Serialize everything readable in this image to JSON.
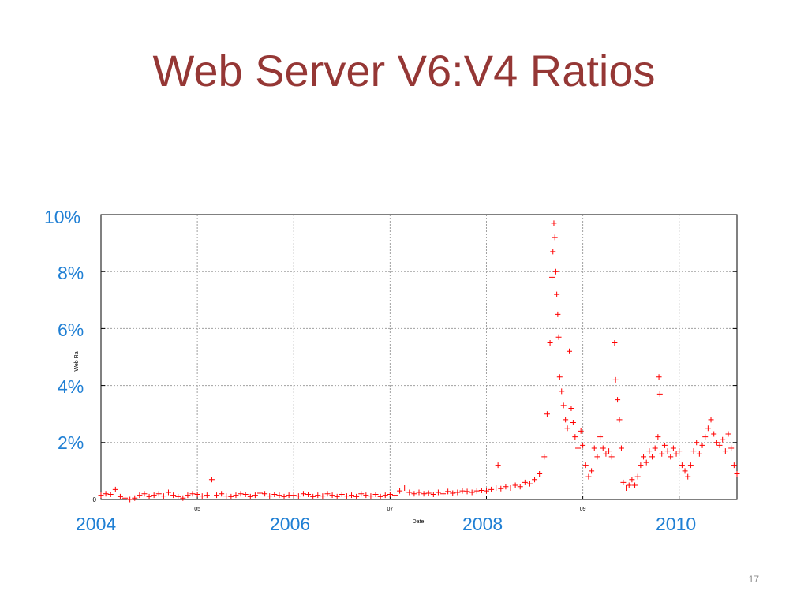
{
  "slide": {
    "title": "Web Server V6:V4 Ratios",
    "page_number": "17"
  },
  "chart_data": {
    "type": "scatter",
    "title": "",
    "xlabel": "Date",
    "ylabel": "Web Ra",
    "x_unit": "year",
    "y_unit": "%",
    "xlim": [
      2004.0,
      2010.6
    ],
    "ylim": [
      0,
      10
    ],
    "grid": true,
    "marker": "+",
    "marker_color": "#ff0000",
    "y_ticks": [
      {
        "value": 0,
        "label": "0"
      },
      {
        "value": 2,
        "label": "2%"
      },
      {
        "value": 4,
        "label": "4%"
      },
      {
        "value": 6,
        "label": "6%"
      },
      {
        "value": 8,
        "label": "8%"
      },
      {
        "value": 10,
        "label": "10%"
      }
    ],
    "x_ticks_small": [
      {
        "value": 2005,
        "label": "05"
      },
      {
        "value": 2007,
        "label": "07"
      },
      {
        "value": 2009,
        "label": "09"
      }
    ],
    "x_ticks_large": [
      {
        "value": 2004,
        "label": "2004"
      },
      {
        "value": 2006,
        "label": "2006"
      },
      {
        "value": 2008,
        "label": "2008"
      },
      {
        "value": 2010,
        "label": "2010"
      }
    ],
    "x_gridlines": [
      2005,
      2006,
      2007,
      2008,
      2009,
      2010
    ],
    "series": [
      {
        "points": [
          [
            2004.0,
            0.15
          ],
          [
            2004.05,
            0.2
          ],
          [
            2004.1,
            0.18
          ],
          [
            2004.15,
            0.35
          ],
          [
            2004.2,
            0.1
          ],
          [
            2004.25,
            0.05
          ],
          [
            2004.3,
            0.0
          ],
          [
            2004.35,
            0.05
          ],
          [
            2004.4,
            0.15
          ],
          [
            2004.45,
            0.2
          ],
          [
            2004.5,
            0.1
          ],
          [
            2004.55,
            0.15
          ],
          [
            2004.6,
            0.2
          ],
          [
            2004.65,
            0.12
          ],
          [
            2004.7,
            0.25
          ],
          [
            2004.75,
            0.15
          ],
          [
            2004.8,
            0.1
          ],
          [
            2004.85,
            0.05
          ],
          [
            2004.9,
            0.15
          ],
          [
            2004.95,
            0.2
          ],
          [
            2005.0,
            0.18
          ],
          [
            2005.05,
            0.12
          ],
          [
            2005.1,
            0.15
          ],
          [
            2005.15,
            0.7
          ],
          [
            2005.2,
            0.15
          ],
          [
            2005.25,
            0.2
          ],
          [
            2005.3,
            0.12
          ],
          [
            2005.35,
            0.1
          ],
          [
            2005.4,
            0.15
          ],
          [
            2005.45,
            0.2
          ],
          [
            2005.5,
            0.18
          ],
          [
            2005.55,
            0.1
          ],
          [
            2005.6,
            0.15
          ],
          [
            2005.65,
            0.22
          ],
          [
            2005.7,
            0.2
          ],
          [
            2005.75,
            0.12
          ],
          [
            2005.8,
            0.18
          ],
          [
            2005.85,
            0.15
          ],
          [
            2005.9,
            0.1
          ],
          [
            2005.95,
            0.15
          ],
          [
            2006.0,
            0.15
          ],
          [
            2006.05,
            0.12
          ],
          [
            2006.1,
            0.2
          ],
          [
            2006.15,
            0.18
          ],
          [
            2006.2,
            0.1
          ],
          [
            2006.25,
            0.15
          ],
          [
            2006.3,
            0.12
          ],
          [
            2006.35,
            0.2
          ],
          [
            2006.4,
            0.15
          ],
          [
            2006.45,
            0.1
          ],
          [
            2006.5,
            0.18
          ],
          [
            2006.55,
            0.12
          ],
          [
            2006.6,
            0.15
          ],
          [
            2006.65,
            0.1
          ],
          [
            2006.7,
            0.2
          ],
          [
            2006.75,
            0.15
          ],
          [
            2006.8,
            0.12
          ],
          [
            2006.85,
            0.18
          ],
          [
            2006.9,
            0.1
          ],
          [
            2006.95,
            0.15
          ],
          [
            2007.0,
            0.18
          ],
          [
            2007.05,
            0.15
          ],
          [
            2007.1,
            0.3
          ],
          [
            2007.15,
            0.4
          ],
          [
            2007.2,
            0.25
          ],
          [
            2007.25,
            0.2
          ],
          [
            2007.3,
            0.25
          ],
          [
            2007.35,
            0.2
          ],
          [
            2007.4,
            0.22
          ],
          [
            2007.45,
            0.18
          ],
          [
            2007.5,
            0.25
          ],
          [
            2007.55,
            0.2
          ],
          [
            2007.6,
            0.28
          ],
          [
            2007.65,
            0.22
          ],
          [
            2007.7,
            0.25
          ],
          [
            2007.75,
            0.3
          ],
          [
            2007.8,
            0.28
          ],
          [
            2007.85,
            0.25
          ],
          [
            2007.9,
            0.3
          ],
          [
            2007.95,
            0.32
          ],
          [
            2008.0,
            0.3
          ],
          [
            2008.05,
            0.35
          ],
          [
            2008.1,
            0.4
          ],
          [
            2008.12,
            1.2
          ],
          [
            2008.15,
            0.38
          ],
          [
            2008.2,
            0.45
          ],
          [
            2008.25,
            0.4
          ],
          [
            2008.3,
            0.5
          ],
          [
            2008.35,
            0.45
          ],
          [
            2008.4,
            0.6
          ],
          [
            2008.45,
            0.55
          ],
          [
            2008.5,
            0.7
          ],
          [
            2008.55,
            0.9
          ],
          [
            2008.6,
            1.5
          ],
          [
            2008.63,
            3.0
          ],
          [
            2008.66,
            5.5
          ],
          [
            2008.68,
            7.8
          ],
          [
            2008.69,
            8.7
          ],
          [
            2008.7,
            9.7
          ],
          [
            2008.71,
            9.2
          ],
          [
            2008.72,
            8.0
          ],
          [
            2008.73,
            7.2
          ],
          [
            2008.74,
            6.5
          ],
          [
            2008.75,
            5.7
          ],
          [
            2008.76,
            4.3
          ],
          [
            2008.78,
            3.8
          ],
          [
            2008.8,
            3.3
          ],
          [
            2008.82,
            2.8
          ],
          [
            2008.84,
            2.5
          ],
          [
            2008.86,
            5.2
          ],
          [
            2008.88,
            3.2
          ],
          [
            2008.9,
            2.7
          ],
          [
            2008.92,
            2.2
          ],
          [
            2008.95,
            1.8
          ],
          [
            2008.98,
            2.4
          ],
          [
            2009.0,
            1.9
          ],
          [
            2009.03,
            1.2
          ],
          [
            2009.06,
            0.8
          ],
          [
            2009.09,
            1.0
          ],
          [
            2009.12,
            1.8
          ],
          [
            2009.15,
            1.5
          ],
          [
            2009.18,
            2.2
          ],
          [
            2009.21,
            1.8
          ],
          [
            2009.24,
            1.6
          ],
          [
            2009.27,
            1.7
          ],
          [
            2009.3,
            1.5
          ],
          [
            2009.33,
            5.5
          ],
          [
            2009.34,
            4.2
          ],
          [
            2009.36,
            3.5
          ],
          [
            2009.38,
            2.8
          ],
          [
            2009.4,
            1.8
          ],
          [
            2009.42,
            0.6
          ],
          [
            2009.45,
            0.4
          ],
          [
            2009.48,
            0.5
          ],
          [
            2009.51,
            0.7
          ],
          [
            2009.54,
            0.5
          ],
          [
            2009.57,
            0.8
          ],
          [
            2009.6,
            1.2
          ],
          [
            2009.63,
            1.5
          ],
          [
            2009.66,
            1.3
          ],
          [
            2009.69,
            1.7
          ],
          [
            2009.72,
            1.5
          ],
          [
            2009.75,
            1.8
          ],
          [
            2009.78,
            2.2
          ],
          [
            2009.79,
            4.3
          ],
          [
            2009.8,
            3.7
          ],
          [
            2009.82,
            1.6
          ],
          [
            2009.85,
            1.9
          ],
          [
            2009.88,
            1.7
          ],
          [
            2009.91,
            1.5
          ],
          [
            2009.94,
            1.8
          ],
          [
            2009.97,
            1.6
          ],
          [
            2010.0,
            1.7
          ],
          [
            2010.03,
            1.2
          ],
          [
            2010.06,
            1.0
          ],
          [
            2010.09,
            0.8
          ],
          [
            2010.12,
            1.2
          ],
          [
            2010.15,
            1.7
          ],
          [
            2010.18,
            2.0
          ],
          [
            2010.21,
            1.6
          ],
          [
            2010.24,
            1.9
          ],
          [
            2010.27,
            2.2
          ],
          [
            2010.3,
            2.5
          ],
          [
            2010.33,
            2.8
          ],
          [
            2010.36,
            2.3
          ],
          [
            2010.39,
            2.0
          ],
          [
            2010.42,
            1.9
          ],
          [
            2010.45,
            2.1
          ],
          [
            2010.48,
            1.7
          ],
          [
            2010.51,
            2.3
          ],
          [
            2010.54,
            1.8
          ],
          [
            2010.57,
            1.2
          ],
          [
            2010.6,
            0.9
          ]
        ]
      }
    ]
  }
}
